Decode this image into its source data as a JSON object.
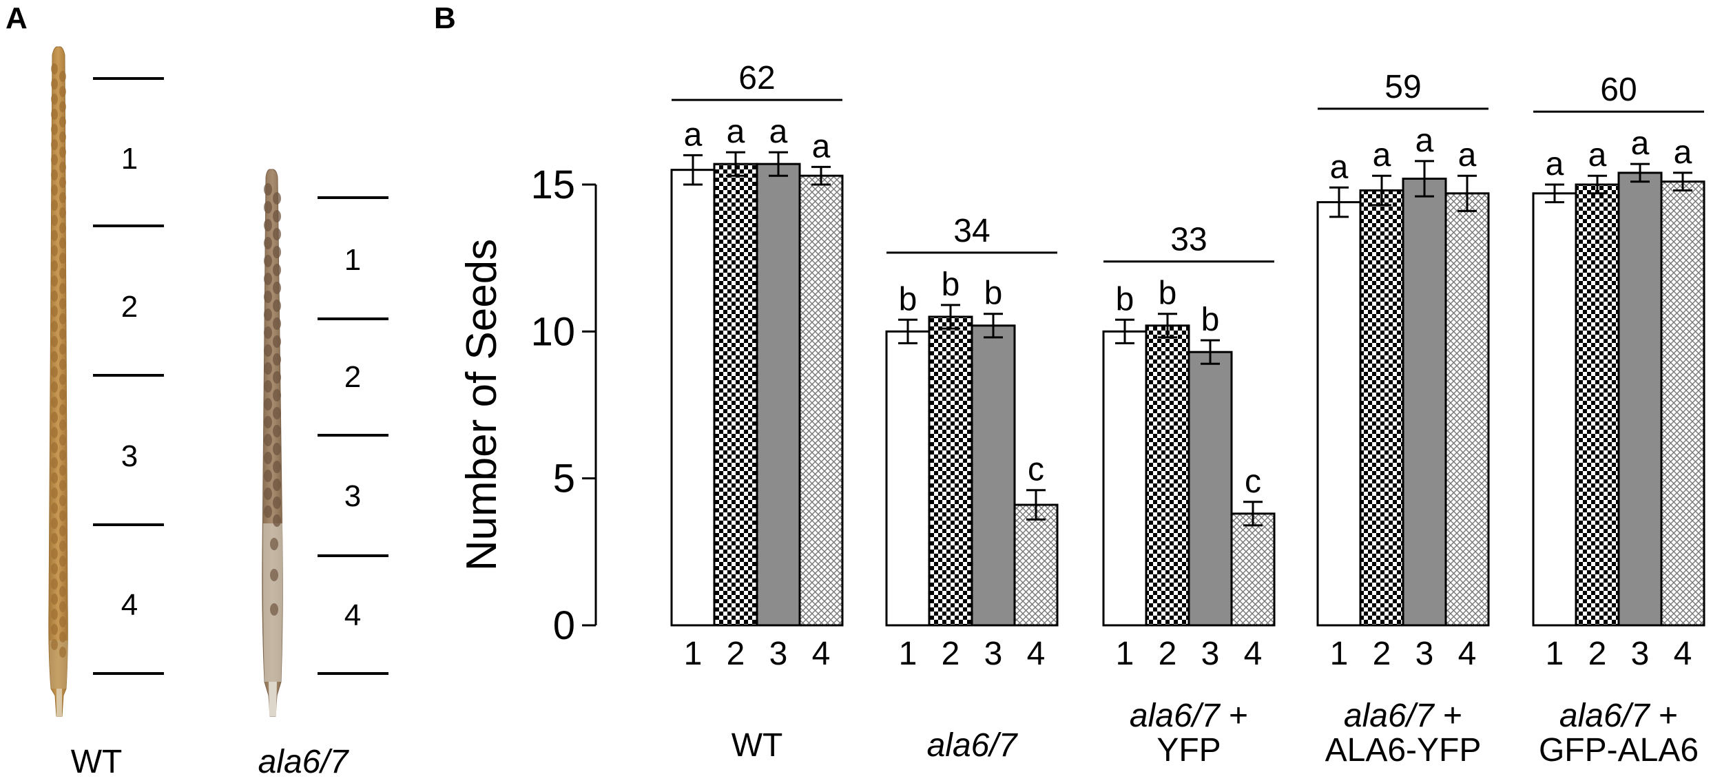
{
  "panel_a": {
    "label": "A",
    "siliques": [
      {
        "name": "WT",
        "italic": false,
        "segments": [
          "1",
          "2",
          "3",
          "4"
        ]
      },
      {
        "name": "ala6/7",
        "italic": true,
        "segments": [
          "1",
          "2",
          "3",
          "4"
        ]
      }
    ]
  },
  "panel_b": {
    "label": "B"
  },
  "colors": {
    "bar_outline": "#000000",
    "seg1_fill": "#ffffff",
    "seg2_fill": "checkerboard-black-white",
    "seg3_fill": "#8c8c8c",
    "seg4_fill": "crosshatch-light",
    "silique_wt": "#b98a45",
    "silique_mutant": "#9a7f62"
  },
  "chart_data": {
    "type": "bar",
    "ylabel": "Number of Seeds",
    "ylim": [
      0,
      15
    ],
    "yticks": [
      0,
      5,
      10,
      15
    ],
    "categories": [
      "1",
      "2",
      "3",
      "4"
    ],
    "groups": [
      {
        "label": [
          "WT"
        ],
        "italic": [
          false
        ],
        "total": "62",
        "values": [
          15.5,
          15.7,
          15.7,
          15.3
        ],
        "errors": [
          0.5,
          0.4,
          0.4,
          0.3
        ],
        "letters": [
          "a",
          "a",
          "a",
          "a"
        ]
      },
      {
        "label": [
          "ala6/7"
        ],
        "italic": [
          true
        ],
        "total": "34",
        "values": [
          10.0,
          10.5,
          10.2,
          4.1
        ],
        "errors": [
          0.4,
          0.4,
          0.4,
          0.5
        ],
        "letters": [
          "b",
          "b",
          "b",
          "c"
        ]
      },
      {
        "label": [
          "ala6/7 +",
          "YFP"
        ],
        "italic": [
          true,
          false
        ],
        "total": "33",
        "values": [
          10.0,
          10.2,
          9.3,
          3.8
        ],
        "errors": [
          0.4,
          0.4,
          0.4,
          0.4
        ],
        "letters": [
          "b",
          "b",
          "b",
          "c"
        ]
      },
      {
        "label": [
          "ala6/7 +",
          "ALA6-YFP"
        ],
        "italic": [
          true,
          false
        ],
        "total": "59",
        "values": [
          14.4,
          14.8,
          15.2,
          14.7
        ],
        "errors": [
          0.5,
          0.5,
          0.6,
          0.6
        ],
        "letters": [
          "a",
          "a",
          "a",
          "a"
        ]
      },
      {
        "label": [
          "ala6/7 +",
          "GFP-ALA6"
        ],
        "italic": [
          true,
          false
        ],
        "total": "60",
        "values": [
          14.7,
          15.0,
          15.4,
          15.1
        ],
        "errors": [
          0.3,
          0.3,
          0.3,
          0.3
        ],
        "letters": [
          "a",
          "a",
          "a",
          "a"
        ]
      }
    ]
  }
}
